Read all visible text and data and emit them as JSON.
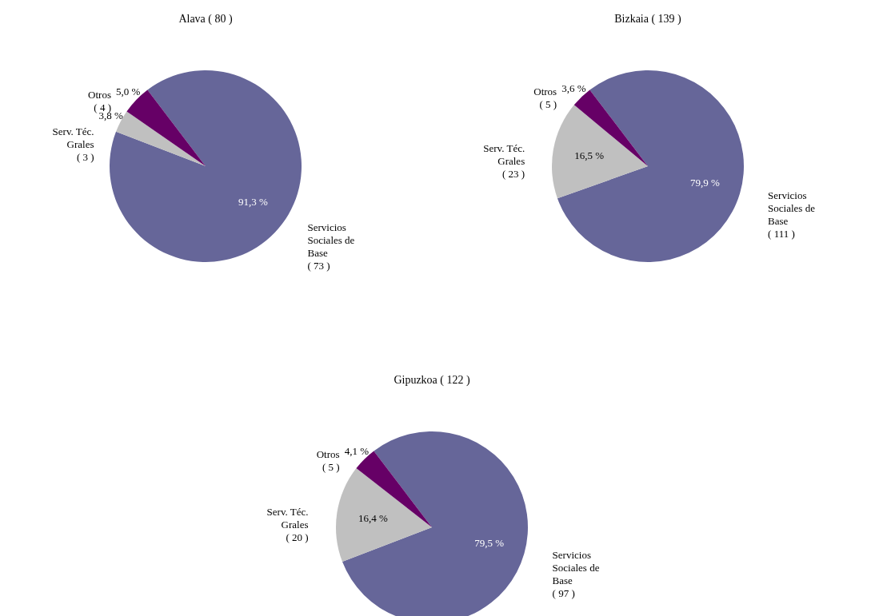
{
  "chart_data": [
    {
      "type": "pie",
      "title": "Álava ( 80 )",
      "categories": [
        "Servicios Sociales de Base ( 73 )",
        "Serv. Téc. Grales ( 3 )",
        "Otros ( 4 )"
      ],
      "values": [
        91.3,
        3.8,
        5.0
      ],
      "colors": [
        "#666699",
        "#c0c0c0",
        "#660066"
      ],
      "value_labels": [
        "91,3 %",
        "3,8 %",
        "5,0 %"
      ]
    },
    {
      "type": "pie",
      "title": "Bizkaia ( 139 )",
      "categories": [
        "Servicios Sociales de Base ( 111 )",
        "Serv. Téc. Grales ( 23 )",
        "Otros ( 5 )"
      ],
      "values": [
        79.9,
        16.5,
        3.6
      ],
      "colors": [
        "#666699",
        "#c0c0c0",
        "#660066"
      ],
      "value_labels": [
        "79,9 %",
        "16,5 %",
        "3,6 %"
      ]
    },
    {
      "type": "pie",
      "title": "Gipuzkoa ( 122 )",
      "categories": [
        "Servicios Sociales de Base ( 97 )",
        "Serv. Téc. Grales ( 20 )",
        "Otros ( 5 )"
      ],
      "values": [
        79.5,
        16.4,
        4.1
      ],
      "colors": [
        "#666699",
        "#c0c0c0",
        "#660066"
      ],
      "value_labels": [
        "79,5 %",
        "16,4 %",
        "4,1 %"
      ]
    }
  ]
}
